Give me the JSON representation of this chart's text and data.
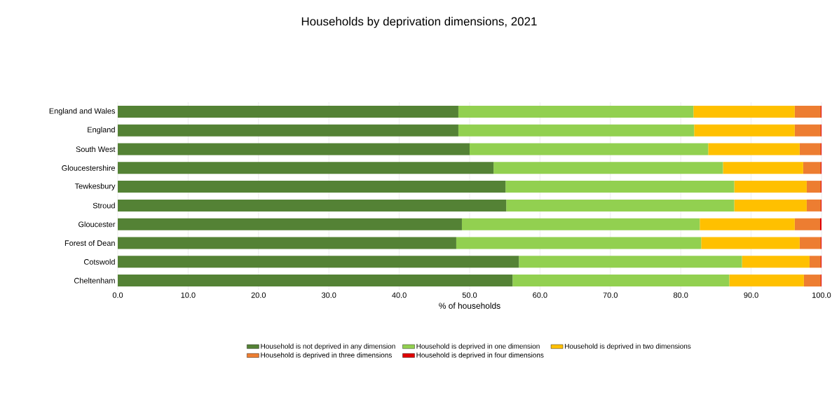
{
  "chart_data": {
    "type": "bar",
    "orientation": "horizontal",
    "stacked": true,
    "title": "Households by deprivation dimensions, 2021",
    "xlabel": "% of households",
    "categories": [
      "England and Wales",
      "England",
      "South West",
      "Gloucestershire",
      "Tewkesbury",
      "Stroud",
      "Gloucester",
      "Forest of Dean",
      "Cotswold",
      "Cheltenham"
    ],
    "series": [
      {
        "name": "Household is not deprived in any dimension",
        "color": "#548235",
        "values": [
          48.4,
          48.4,
          50.0,
          53.4,
          55.1,
          55.2,
          48.9,
          48.1,
          57.0,
          56.1
        ]
      },
      {
        "name": "Household is deprived in one dimension",
        "color": "#92d050",
        "values": [
          33.4,
          33.5,
          33.9,
          32.6,
          32.5,
          32.4,
          33.8,
          34.8,
          31.7,
          30.8
        ]
      },
      {
        "name": "Household is deprived in two dimensions",
        "color": "#ffc000",
        "values": [
          14.4,
          14.3,
          13.0,
          11.4,
          10.3,
          10.3,
          13.5,
          14.0,
          9.6,
          10.6
        ]
      },
      {
        "name": "Household is deprived in three dimensions",
        "color": "#ed7d31",
        "values": [
          3.7,
          3.7,
          3.0,
          2.5,
          2.0,
          2.0,
          3.6,
          3.0,
          1.6,
          2.4
        ]
      },
      {
        "name": "Household is deprived in four dimensions",
        "color": "#e00000",
        "values": [
          0.1,
          0.1,
          0.1,
          0.1,
          0.1,
          0.1,
          0.2,
          0.1,
          0.1,
          0.1
        ]
      }
    ],
    "xlim": [
      0,
      100
    ],
    "xticks": [
      {
        "value": 0,
        "label": "0.0"
      },
      {
        "value": 10,
        "label": "10.0"
      },
      {
        "value": 20,
        "label": "20.0"
      },
      {
        "value": 30,
        "label": "30.0"
      },
      {
        "value": 40,
        "label": "40.0"
      },
      {
        "value": 50,
        "label": "50.0"
      },
      {
        "value": 60,
        "label": "60.0"
      },
      {
        "value": 70,
        "label": "70.0"
      },
      {
        "value": 80,
        "label": "80.0"
      },
      {
        "value": 90,
        "label": "90.0"
      },
      {
        "value": 100,
        "label": "100.0"
      }
    ],
    "grid": "x",
    "legend": "bottom"
  }
}
